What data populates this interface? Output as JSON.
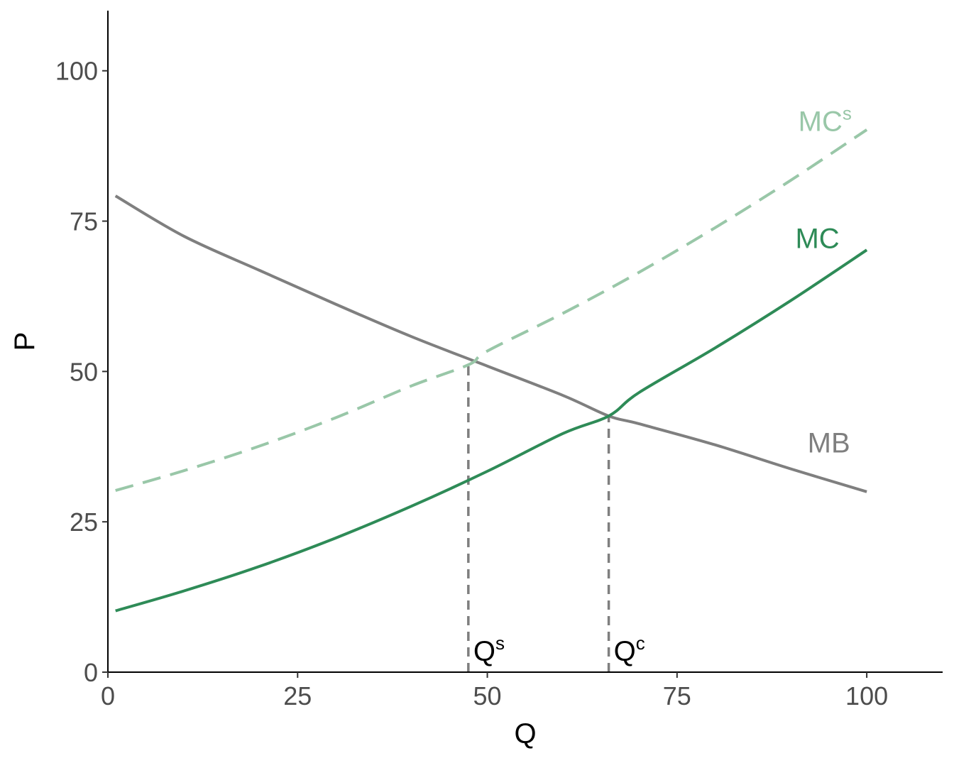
{
  "chart_data": {
    "type": "line",
    "xlabel": "Q",
    "ylabel": "P",
    "xlim": [
      0,
      110
    ],
    "ylim": [
      0,
      110
    ],
    "x_ticks": [
      0,
      25,
      50,
      75,
      100
    ],
    "y_ticks": [
      0,
      25,
      50,
      75,
      100
    ],
    "grid": false,
    "series": [
      {
        "name": "MB",
        "label_main": "MB",
        "label_sup": "",
        "style": "solid",
        "color": "#7f7f7f",
        "x": [
          1,
          10,
          20,
          30,
          40,
          50,
          60,
          66,
          70,
          80,
          90,
          100
        ],
        "y": [
          79.2,
          72.5,
          66.8,
          61.2,
          55.8,
          50.9,
          46.0,
          42.6,
          41.3,
          37.8,
          33.8,
          30.0
        ]
      },
      {
        "name": "MC",
        "label_main": "MC",
        "label_sup": "",
        "style": "solid",
        "color": "#2e8b57",
        "x": [
          1,
          10,
          20,
          30,
          40,
          50,
          60,
          66,
          70,
          80,
          90,
          100
        ],
        "y": [
          10.2,
          13.5,
          17.6,
          22.3,
          27.6,
          33.4,
          39.7,
          42.6,
          46.5,
          53.9,
          61.8,
          70.2
        ]
      },
      {
        "name": "MCˢ",
        "label_main": "MC",
        "label_sup": "s",
        "style": "dashed",
        "color": "#99c7a8",
        "x": [
          1,
          10,
          20,
          30,
          40,
          47.5,
          50,
          60,
          70,
          80,
          90,
          100
        ],
        "y": [
          30.2,
          33.5,
          37.6,
          42.3,
          47.6,
          51.1,
          53.4,
          59.7,
          66.5,
          73.9,
          81.8,
          90.2
        ]
      }
    ],
    "vlines": [
      {
        "label_main": "Q",
        "label_sup": "s",
        "x": 47.5,
        "y": 51.1
      },
      {
        "label_main": "Q",
        "label_sup": "c",
        "x": 66,
        "y": 42.6
      }
    ],
    "series_labels_at": [
      {
        "series": "MC",
        "x": 93.5,
        "y": 70.5
      },
      {
        "series": "MCˢ",
        "x": 94.5,
        "y": 90
      },
      {
        "series": "MB",
        "x": 95,
        "y": 36.5
      }
    ]
  }
}
